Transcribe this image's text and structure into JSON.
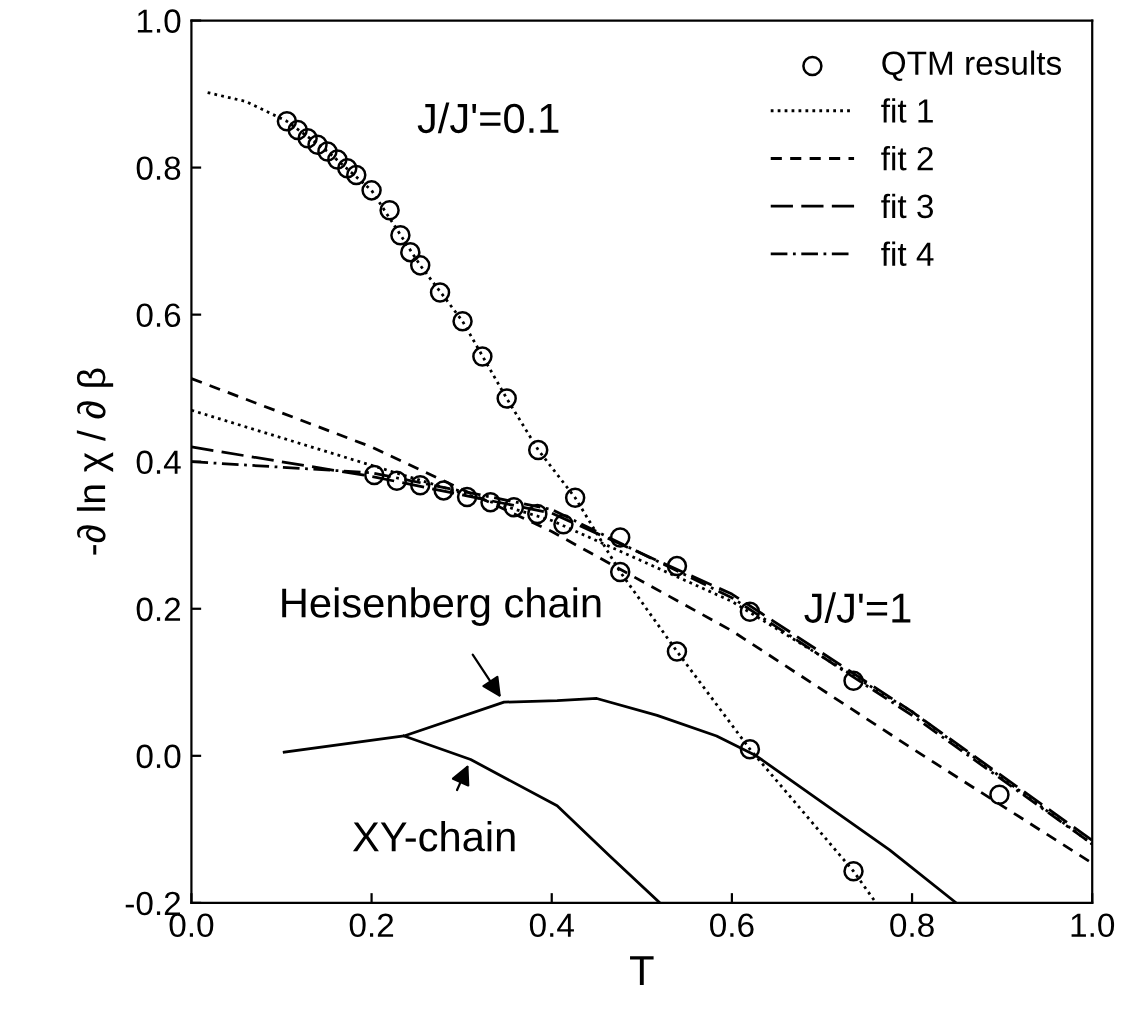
{
  "chart_data": {
    "type": "line",
    "xlabel": "T",
    "ylabel": "-∂ ln χ / ∂ β",
    "xlim": [
      0,
      1.0
    ],
    "ylim": [
      -0.2,
      1.0
    ],
    "xticks": [
      {
        "value": 0,
        "label": "0.0"
      },
      0.2,
      0.4,
      0.6,
      0.8,
      {
        "value": 1.0,
        "label": "1.0"
      }
    ],
    "yticks": [
      {
        "value": -0.2,
        "label": "-0.2"
      },
      {
        "value": 0,
        "label": "0.0"
      },
      0.2,
      0.4,
      0.6,
      0.8,
      {
        "value": 1.0,
        "label": "1.0"
      }
    ],
    "grid": false,
    "legend": "top right",
    "series": [
      {
        "name": "QTM results",
        "type": "scatter",
        "marker": "circle",
        "color": "#000000",
        "x": [
          0.106,
          0.118,
          0.129,
          0.14,
          0.151,
          0.162,
          0.173,
          0.183,
          0.2,
          0.22,
          0.232,
          0.243,
          0.254,
          0.276,
          0.301,
          0.323,
          0.35,
          0.385,
          0.426,
          0.476,
          0.539,
          0.62,
          0.735,
          0.203,
          0.228,
          0.254,
          0.28,
          0.306,
          0.332,
          0.358,
          0.384,
          0.413,
          0.476,
          0.539,
          0.62,
          0.735,
          0.897
        ],
        "values": [
          0.863,
          0.851,
          0.84,
          0.831,
          0.822,
          0.811,
          0.799,
          0.79,
          0.769,
          0.742,
          0.708,
          0.685,
          0.667,
          0.63,
          0.591,
          0.543,
          0.486,
          0.416,
          0.351,
          0.25,
          0.142,
          0.009,
          -0.157,
          0.382,
          0.374,
          0.368,
          0.361,
          0.352,
          0.345,
          0.338,
          0.329,
          0.315,
          0.297,
          0.258,
          0.196,
          0.102,
          -0.053
        ]
      },
      {
        "name": "fit 1",
        "line_style": "dotted",
        "color": "#000000",
        "x": [
          0,
          0.2,
          0.4,
          0.6,
          0.8,
          1.0
        ],
        "values": [
          0.47,
          0.395,
          0.32,
          0.21,
          0.06,
          -0.12
        ]
      },
      {
        "name": "fit 2",
        "line_style": "dashed",
        "color": "#000000",
        "x": [
          0,
          0.2,
          0.4,
          0.6,
          0.8,
          1.0
        ],
        "values": [
          0.513,
          0.42,
          0.305,
          0.17,
          0.01,
          -0.146
        ]
      },
      {
        "name": "fit 3",
        "line_style": "longdash",
        "color": "#000000",
        "x": [
          0,
          0.2,
          0.4,
          0.6,
          0.8,
          1.0
        ],
        "values": [
          0.42,
          0.38,
          0.33,
          0.22,
          0.06,
          -0.115
        ]
      },
      {
        "name": "fit 4",
        "line_style": "dashdot",
        "color": "#000000",
        "x": [
          0,
          0.2,
          0.4,
          0.6,
          0.8,
          1.0
        ],
        "values": [
          0.4,
          0.385,
          0.335,
          0.215,
          0.055,
          -0.12
        ]
      },
      {
        "line_style": "dotted",
        "color": "#000000",
        "x": [
          0.018,
          0.06,
          0.106,
          0.151,
          0.2,
          0.254,
          0.301,
          0.35,
          0.385,
          0.426,
          0.476,
          0.539,
          0.62,
          0.735,
          0.76
        ],
        "values": [
          0.902,
          0.89,
          0.863,
          0.822,
          0.769,
          0.667,
          0.591,
          0.486,
          0.416,
          0.351,
          0.25,
          0.142,
          0.009,
          -0.157,
          -0.2
        ]
      },
      {
        "line_style": "solid",
        "color": "#000000",
        "x": [
          0.103,
          0.236,
          0.347,
          0.406,
          0.45,
          0.517,
          0.583,
          0.627,
          0.701,
          0.775,
          0.849
        ],
        "values": [
          0.005,
          0.027,
          0.073,
          0.075,
          0.078,
          0.055,
          0.027,
          0.0,
          -0.064,
          -0.128,
          -0.2
        ]
      },
      {
        "line_style": "solid",
        "color": "#000000",
        "x": [
          0.236,
          0.31,
          0.406,
          0.465,
          0.52
        ],
        "values": [
          0.027,
          -0.005,
          -0.068,
          -0.137,
          -0.2
        ]
      }
    ],
    "annotations": [
      "J/J'=0.1",
      "J/J'=1",
      {
        "text": "Heisenberg chain",
        "x": 0.347,
        "y": 0.073
      },
      {
        "text": "XY-chain",
        "x": 0.31,
        "y": -0.005
      }
    ]
  }
}
